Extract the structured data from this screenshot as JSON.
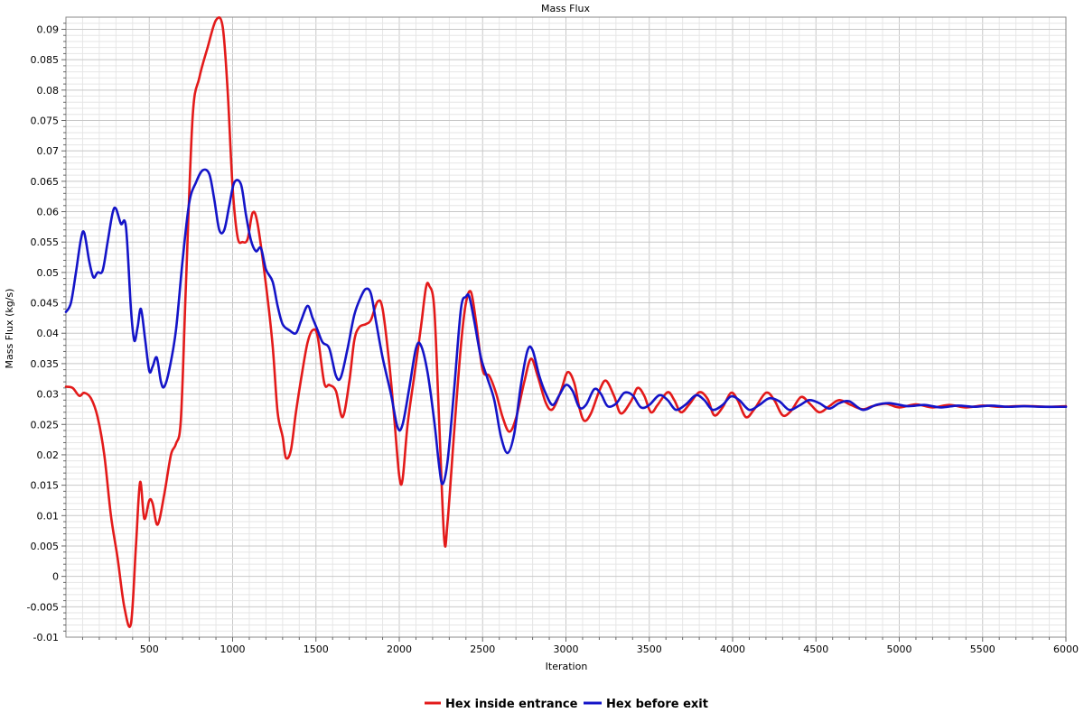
{
  "chart_data": {
    "type": "line",
    "title": "Mass Flux",
    "xlabel": "Iteration",
    "ylabel": "Mass Flux (kg/s)",
    "xlim": [
      0,
      6000
    ],
    "ylim": [
      -0.01,
      0.092
    ],
    "grid": true,
    "legend_position": "bottom-center",
    "x_ticks": [
      500,
      1000,
      1500,
      2000,
      2500,
      3000,
      3500,
      4000,
      4500,
      5000,
      5500,
      6000
    ],
    "x_tick_labels": [
      "500",
      "1000",
      "1500",
      "2000",
      "2500",
      "3000",
      "3500",
      "4000",
      "4500",
      "5000",
      "5500",
      "6000"
    ],
    "y_ticks": [
      -0.01,
      -0.005,
      0,
      0.005,
      0.01,
      0.015,
      0.02,
      0.025,
      0.03,
      0.035,
      0.04,
      0.045,
      0.05,
      0.055,
      0.06,
      0.065,
      0.07,
      0.075,
      0.08,
      0.085,
      0.09
    ],
    "y_tick_labels": [
      "-0.01",
      "-0.005",
      "0",
      "0.005",
      "0.01",
      "0.015",
      "0.02",
      "0.025",
      "0.03",
      "0.035",
      "0.04",
      "0.045",
      "0.05",
      "0.055",
      "0.06",
      "0.065",
      "0.07",
      "0.075",
      "0.08",
      "0.085",
      "0.09"
    ],
    "series": [
      {
        "name": "Hex inside entrance",
        "color": "#e31a1a",
        "points": [
          [
            0,
            0.0312
          ],
          [
            40,
            0.031
          ],
          [
            80,
            0.0297
          ],
          [
            110,
            0.0302
          ],
          [
            150,
            0.0293
          ],
          [
            190,
            0.0262
          ],
          [
            230,
            0.02
          ],
          [
            270,
            0.01
          ],
          [
            310,
            0.003
          ],
          [
            350,
            -0.005
          ],
          [
            390,
            -0.0078
          ],
          [
            420,
            0.005
          ],
          [
            445,
            0.0155
          ],
          [
            470,
            0.0095
          ],
          [
            500,
            0.0125
          ],
          [
            520,
            0.012
          ],
          [
            550,
            0.0085
          ],
          [
            590,
            0.0135
          ],
          [
            630,
            0.02
          ],
          [
            660,
            0.0218
          ],
          [
            690,
            0.026
          ],
          [
            720,
            0.048
          ],
          [
            760,
            0.0755
          ],
          [
            800,
            0.082
          ],
          [
            850,
            0.087
          ],
          [
            900,
            0.0915
          ],
          [
            940,
            0.0905
          ],
          [
            970,
            0.08
          ],
          [
            1000,
            0.064
          ],
          [
            1030,
            0.0558
          ],
          [
            1060,
            0.055
          ],
          [
            1090,
            0.0555
          ],
          [
            1120,
            0.0598
          ],
          [
            1150,
            0.058
          ],
          [
            1200,
            0.048
          ],
          [
            1240,
            0.038
          ],
          [
            1270,
            0.027
          ],
          [
            1300,
            0.023
          ],
          [
            1320,
            0.0195
          ],
          [
            1350,
            0.0208
          ],
          [
            1380,
            0.027
          ],
          [
            1420,
            0.034
          ],
          [
            1450,
            0.0385
          ],
          [
            1480,
            0.0405
          ],
          [
            1510,
            0.0395
          ],
          [
            1550,
            0.0318
          ],
          [
            1580,
            0.0315
          ],
          [
            1620,
            0.0305
          ],
          [
            1660,
            0.0262
          ],
          [
            1700,
            0.032
          ],
          [
            1730,
            0.0388
          ],
          [
            1760,
            0.041
          ],
          [
            1800,
            0.0415
          ],
          [
            1830,
            0.0422
          ],
          [
            1870,
            0.0452
          ],
          [
            1900,
            0.044
          ],
          [
            1940,
            0.035
          ],
          [
            1970,
            0.026
          ],
          [
            2000,
            0.0165
          ],
          [
            2020,
            0.016
          ],
          [
            2050,
            0.025
          ],
          [
            2090,
            0.033
          ],
          [
            2130,
            0.041
          ],
          [
            2160,
            0.0475
          ],
          [
            2180,
            0.0478
          ],
          [
            2210,
            0.044
          ],
          [
            2240,
            0.025
          ],
          [
            2270,
            0.006
          ],
          [
            2290,
            0.009
          ],
          [
            2330,
            0.024
          ],
          [
            2370,
            0.038
          ],
          [
            2400,
            0.045
          ],
          [
            2430,
            0.0468
          ],
          [
            2460,
            0.042
          ],
          [
            2500,
            0.034
          ],
          [
            2540,
            0.033
          ],
          [
            2580,
            0.0302
          ],
          [
            2620,
            0.0262
          ],
          [
            2660,
            0.0238
          ],
          [
            2700,
            0.026
          ],
          [
            2750,
            0.032
          ],
          [
            2790,
            0.0358
          ],
          [
            2830,
            0.033
          ],
          [
            2880,
            0.0285
          ],
          [
            2920,
            0.0275
          ],
          [
            2970,
            0.0305
          ],
          [
            3010,
            0.0336
          ],
          [
            3050,
            0.0318
          ],
          [
            3080,
            0.0278
          ],
          [
            3110,
            0.0256
          ],
          [
            3150,
            0.0268
          ],
          [
            3200,
            0.0305
          ],
          [
            3240,
            0.0322
          ],
          [
            3290,
            0.0296
          ],
          [
            3330,
            0.0268
          ],
          [
            3390,
            0.0288
          ],
          [
            3430,
            0.031
          ],
          [
            3470,
            0.0297
          ],
          [
            3510,
            0.027
          ],
          [
            3550,
            0.0282
          ],
          [
            3610,
            0.0303
          ],
          [
            3650,
            0.029
          ],
          [
            3690,
            0.027
          ],
          [
            3740,
            0.0283
          ],
          [
            3800,
            0.0303
          ],
          [
            3850,
            0.0292
          ],
          [
            3890,
            0.0265
          ],
          [
            3940,
            0.0278
          ],
          [
            3990,
            0.0302
          ],
          [
            4030,
            0.029
          ],
          [
            4080,
            0.0262
          ],
          [
            4130,
            0.0275
          ],
          [
            4200,
            0.0302
          ],
          [
            4250,
            0.029
          ],
          [
            4300,
            0.0265
          ],
          [
            4350,
            0.0272
          ],
          [
            4410,
            0.0295
          ],
          [
            4460,
            0.0285
          ],
          [
            4520,
            0.027
          ],
          [
            4580,
            0.028
          ],
          [
            4640,
            0.029
          ],
          [
            4710,
            0.0282
          ],
          [
            4780,
            0.0275
          ],
          [
            4840,
            0.028
          ],
          [
            4920,
            0.0284
          ],
          [
            5000,
            0.0278
          ],
          [
            5100,
            0.0283
          ],
          [
            5200,
            0.0278
          ],
          [
            5300,
            0.0282
          ],
          [
            5400,
            0.0278
          ],
          [
            5500,
            0.0281
          ],
          [
            5600,
            0.0279
          ],
          [
            5700,
            0.028
          ],
          [
            5800,
            0.028
          ],
          [
            5900,
            0.0279
          ],
          [
            6000,
            0.028
          ]
        ]
      },
      {
        "name": "Hex before exit",
        "color": "#1414c8",
        "points": [
          [
            0,
            0.0435
          ],
          [
            30,
            0.045
          ],
          [
            60,
            0.05
          ],
          [
            90,
            0.0555
          ],
          [
            110,
            0.0565
          ],
          [
            140,
            0.0518
          ],
          [
            165,
            0.0492
          ],
          [
            190,
            0.05
          ],
          [
            220,
            0.0503
          ],
          [
            250,
            0.055
          ],
          [
            280,
            0.0598
          ],
          [
            300,
            0.0605
          ],
          [
            330,
            0.058
          ],
          [
            360,
            0.0575
          ],
          [
            390,
            0.044
          ],
          [
            410,
            0.0388
          ],
          [
            430,
            0.041
          ],
          [
            450,
            0.044
          ],
          [
            475,
            0.039
          ],
          [
            500,
            0.0338
          ],
          [
            520,
            0.0345
          ],
          [
            545,
            0.036
          ],
          [
            570,
            0.032
          ],
          [
            590,
            0.0312
          ],
          [
            620,
            0.034
          ],
          [
            660,
            0.0405
          ],
          [
            700,
            0.052
          ],
          [
            740,
            0.0615
          ],
          [
            780,
            0.0648
          ],
          [
            820,
            0.0668
          ],
          [
            860,
            0.0662
          ],
          [
            890,
            0.062
          ],
          [
            920,
            0.057
          ],
          [
            950,
            0.057
          ],
          [
            980,
            0.061
          ],
          [
            1010,
            0.0648
          ],
          [
            1050,
            0.0645
          ],
          [
            1080,
            0.0595
          ],
          [
            1110,
            0.0553
          ],
          [
            1140,
            0.0535
          ],
          [
            1170,
            0.054
          ],
          [
            1200,
            0.0505
          ],
          [
            1240,
            0.0485
          ],
          [
            1270,
            0.0445
          ],
          [
            1300,
            0.0415
          ],
          [
            1340,
            0.0405
          ],
          [
            1380,
            0.04
          ],
          [
            1410,
            0.042
          ],
          [
            1450,
            0.0445
          ],
          [
            1480,
            0.0425
          ],
          [
            1510,
            0.0405
          ],
          [
            1540,
            0.0385
          ],
          [
            1580,
            0.0375
          ],
          [
            1620,
            0.033
          ],
          [
            1650,
            0.0328
          ],
          [
            1690,
            0.0375
          ],
          [
            1730,
            0.043
          ],
          [
            1770,
            0.046
          ],
          [
            1800,
            0.0473
          ],
          [
            1830,
            0.0465
          ],
          [
            1860,
            0.042
          ],
          [
            1900,
            0.036
          ],
          [
            1950,
            0.03
          ],
          [
            1990,
            0.0245
          ],
          [
            2020,
            0.025
          ],
          [
            2060,
            0.031
          ],
          [
            2100,
            0.0375
          ],
          [
            2130,
            0.038
          ],
          [
            2170,
            0.0335
          ],
          [
            2210,
            0.0255
          ],
          [
            2240,
            0.018
          ],
          [
            2260,
            0.0152
          ],
          [
            2290,
            0.019
          ],
          [
            2330,
            0.031
          ],
          [
            2370,
            0.044
          ],
          [
            2400,
            0.046
          ],
          [
            2420,
            0.046
          ],
          [
            2450,
            0.042
          ],
          [
            2490,
            0.036
          ],
          [
            2530,
            0.0325
          ],
          [
            2570,
            0.029
          ],
          [
            2610,
            0.023
          ],
          [
            2650,
            0.0203
          ],
          [
            2690,
            0.0235
          ],
          [
            2730,
            0.0315
          ],
          [
            2770,
            0.0372
          ],
          [
            2800,
            0.0372
          ],
          [
            2840,
            0.033
          ],
          [
            2880,
            0.03
          ],
          [
            2920,
            0.0282
          ],
          [
            2960,
            0.0298
          ],
          [
            3000,
            0.0315
          ],
          [
            3040,
            0.0305
          ],
          [
            3080,
            0.0278
          ],
          [
            3120,
            0.0282
          ],
          [
            3170,
            0.0308
          ],
          [
            3210,
            0.03
          ],
          [
            3250,
            0.028
          ],
          [
            3300,
            0.0284
          ],
          [
            3350,
            0.0302
          ],
          [
            3400,
            0.0298
          ],
          [
            3450,
            0.0278
          ],
          [
            3500,
            0.0282
          ],
          [
            3560,
            0.0298
          ],
          [
            3610,
            0.029
          ],
          [
            3660,
            0.0274
          ],
          [
            3720,
            0.0283
          ],
          [
            3780,
            0.0298
          ],
          [
            3830,
            0.029
          ],
          [
            3880,
            0.0274
          ],
          [
            3940,
            0.0282
          ],
          [
            3990,
            0.0296
          ],
          [
            4040,
            0.029
          ],
          [
            4100,
            0.0274
          ],
          [
            4160,
            0.0282
          ],
          [
            4220,
            0.0293
          ],
          [
            4280,
            0.0288
          ],
          [
            4340,
            0.0274
          ],
          [
            4400,
            0.0281
          ],
          [
            4460,
            0.029
          ],
          [
            4520,
            0.0285
          ],
          [
            4580,
            0.0276
          ],
          [
            4640,
            0.0285
          ],
          [
            4700,
            0.0288
          ],
          [
            4780,
            0.0274
          ],
          [
            4860,
            0.0282
          ],
          [
            4940,
            0.0285
          ],
          [
            5050,
            0.028
          ],
          [
            5150,
            0.0282
          ],
          [
            5250,
            0.0278
          ],
          [
            5350,
            0.0281
          ],
          [
            5450,
            0.0279
          ],
          [
            5550,
            0.0281
          ],
          [
            5650,
            0.0279
          ],
          [
            5750,
            0.028
          ],
          [
            5850,
            0.0279
          ],
          [
            6000,
            0.0279
          ]
        ]
      }
    ]
  }
}
